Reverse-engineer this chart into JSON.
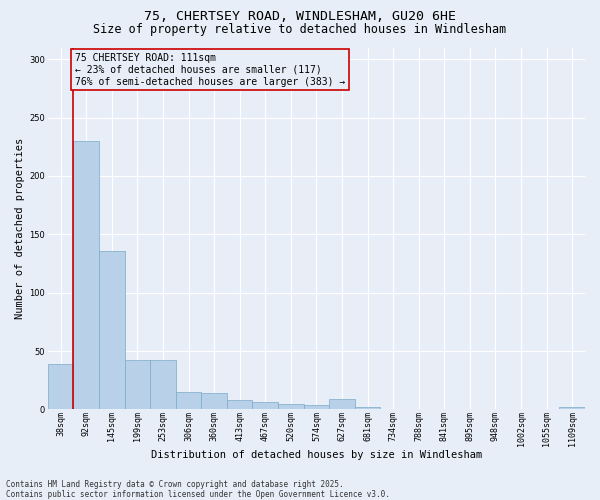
{
  "title_line1": "75, CHERTSEY ROAD, WINDLESHAM, GU20 6HE",
  "title_line2": "Size of property relative to detached houses in Windlesham",
  "xlabel": "Distribution of detached houses by size in Windlesham",
  "ylabel": "Number of detached properties",
  "categories": [
    "38sqm",
    "92sqm",
    "145sqm",
    "199sqm",
    "253sqm",
    "306sqm",
    "360sqm",
    "413sqm",
    "467sqm",
    "520sqm",
    "574sqm",
    "627sqm",
    "681sqm",
    "734sqm",
    "788sqm",
    "841sqm",
    "895sqm",
    "948sqm",
    "1002sqm",
    "1055sqm",
    "1109sqm"
  ],
  "values": [
    39,
    230,
    136,
    42,
    42,
    15,
    14,
    8,
    6,
    5,
    4,
    9,
    2,
    0,
    0,
    0,
    0,
    0,
    0,
    0,
    2
  ],
  "bar_color": "#b8d0e8",
  "bar_edge_color": "#7aaac8",
  "vline_color": "#cc0000",
  "vline_pos": 0.5,
  "annotation_text": "75 CHERTSEY ROAD: 111sqm\n← 23% of detached houses are smaller (117)\n76% of semi-detached houses are larger (383) →",
  "annotation_box_edgecolor": "#cc0000",
  "ylim_max": 310,
  "yticks": [
    0,
    50,
    100,
    150,
    200,
    250,
    300
  ],
  "background_color": "#e8eef8",
  "grid_color": "#ffffff",
  "footer_text": "Contains HM Land Registry data © Crown copyright and database right 2025.\nContains public sector information licensed under the Open Government Licence v3.0.",
  "title_fontsize": 9.5,
  "subtitle_fontsize": 8.5,
  "ylabel_fontsize": 7.5,
  "xlabel_fontsize": 7.5,
  "tick_fontsize": 6.0,
  "annotation_fontsize": 7.0,
  "footer_fontsize": 5.5
}
